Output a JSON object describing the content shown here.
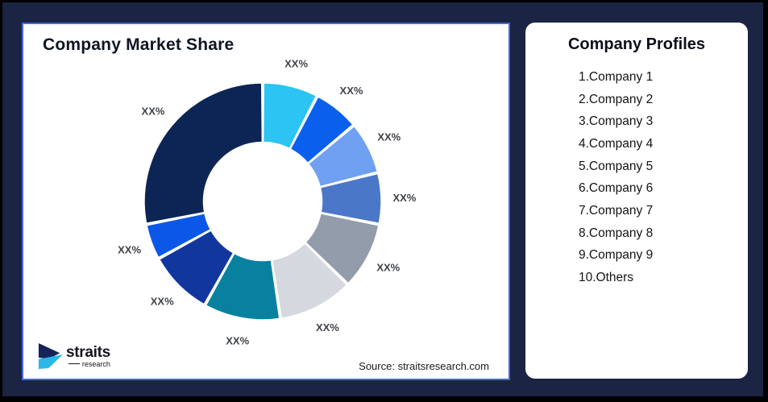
{
  "page": {
    "background_color": "#1B2443",
    "card_border_color": "#4169E1"
  },
  "chart": {
    "title": "Company Market Share",
    "source": "Source: straitsresearch.com"
  },
  "chart_data": {
    "type": "pie",
    "subtype": "donut",
    "title": "Company Market Share",
    "start_angle_deg": 0,
    "direction": "clockwise",
    "inner_radius_ratio": 0.5,
    "gap_deg": 1.0,
    "label_color": "#3F4348",
    "segments": [
      {
        "label": "XX%",
        "value": 7.6,
        "color": "#2BC4F3"
      },
      {
        "label": "XX%",
        "value": 6.3,
        "color": "#0A60ED"
      },
      {
        "label": "XX%",
        "value": 7.2,
        "color": "#6FA0F1"
      },
      {
        "label": "XX%",
        "value": 7.0,
        "color": "#4B77C9"
      },
      {
        "label": "XX%",
        "value": 9.2,
        "color": "#939CAA"
      },
      {
        "label": "XX%",
        "value": 10.3,
        "color": "#D5D8DE"
      },
      {
        "label": "XX%",
        "value": 10.5,
        "color": "#0881A1"
      },
      {
        "label": "XX%",
        "value": 8.9,
        "color": "#11379E"
      },
      {
        "label": "XX%",
        "value": 4.9,
        "color": "#0B58E8"
      },
      {
        "label": "XX%",
        "value": 28.1,
        "color": "#0D2554"
      }
    ]
  },
  "profiles": {
    "title": "Company Profiles",
    "items": [
      "1.Company 1",
      "2.Company 2",
      "3.Company 3",
      "4.Company 4",
      "5.Company 5",
      "6.Company 6",
      "7.Company 7",
      "8.Company 8",
      "9.Company 9",
      "10.Others"
    ]
  },
  "logo": {
    "brand": "straits",
    "sub": "research",
    "navy_color": "#16245A",
    "cyan_color": "#2BB7EA"
  }
}
